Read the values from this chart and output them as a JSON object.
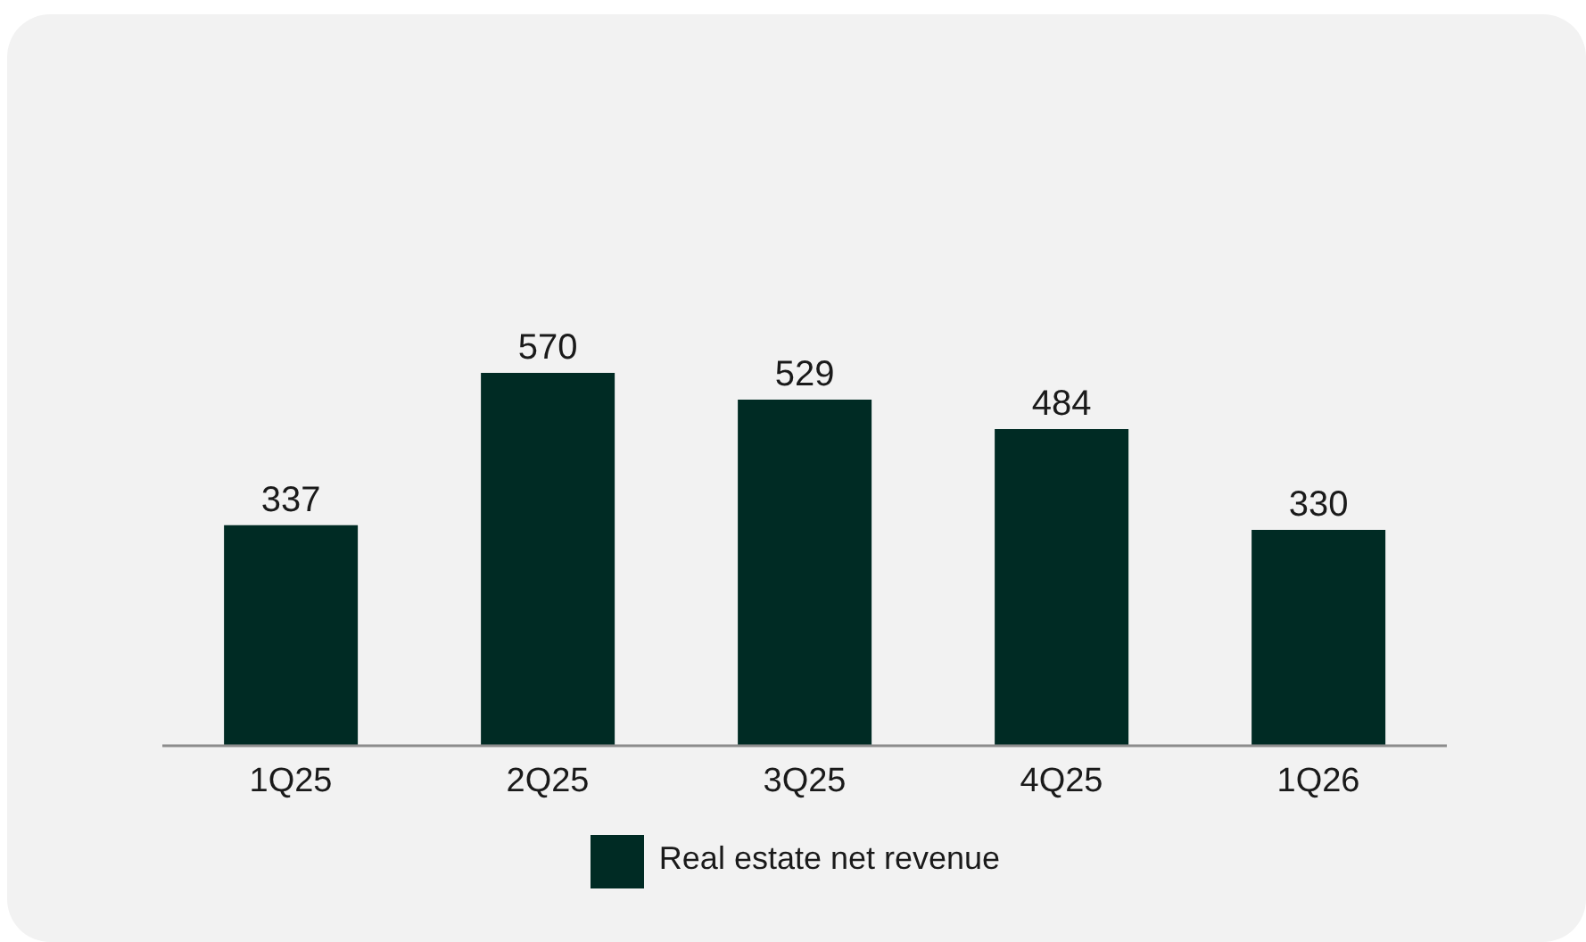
{
  "chart_data": {
    "type": "bar",
    "categories": [
      "1Q25",
      "2Q25",
      "3Q25",
      "4Q25",
      "1Q26"
    ],
    "series": [
      {
        "name": "Real estate net revenue",
        "color": "#002b24",
        "values": [
          337,
          570,
          529,
          484,
          330
        ]
      }
    ],
    "data_labels": true,
    "legend": "bottom",
    "grid": false
  }
}
